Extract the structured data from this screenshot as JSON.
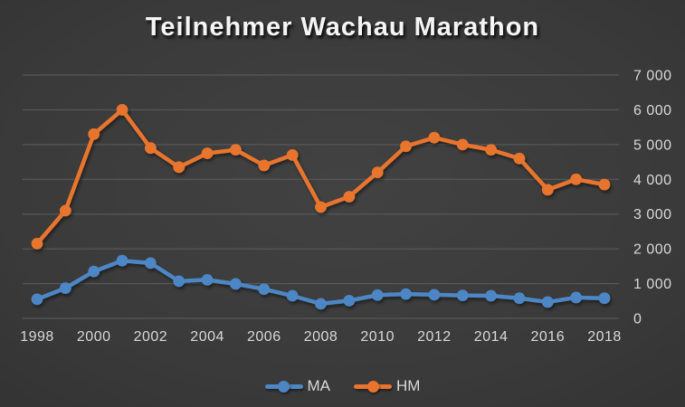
{
  "chart_data": {
    "type": "line",
    "title": "Teilnehmer Wachau Marathon",
    "x": [
      1998,
      1999,
      2000,
      2001,
      2002,
      2003,
      2004,
      2005,
      2006,
      2007,
      2008,
      2009,
      2010,
      2011,
      2012,
      2013,
      2014,
      2015,
      2016,
      2017,
      2018
    ],
    "x_tick_labels": [
      "1998",
      "2000",
      "2002",
      "2004",
      "2006",
      "2008",
      "2010",
      "2012",
      "2014",
      "2016",
      "2018"
    ],
    "series": [
      {
        "name": "MA",
        "color": "#4E86C4",
        "values": [
          550,
          870,
          1350,
          1660,
          1590,
          1070,
          1110,
          990,
          840,
          650,
          420,
          510,
          670,
          700,
          680,
          660,
          650,
          580,
          470,
          600,
          580
        ]
      },
      {
        "name": "HM",
        "color": "#E8742E",
        "values": [
          2150,
          3100,
          5300,
          6000,
          4900,
          4350,
          4750,
          4850,
          4400,
          4700,
          3200,
          3500,
          4200,
          4950,
          5200,
          5000,
          4850,
          4600,
          3700,
          4000,
          3850
        ]
      }
    ],
    "ylim": [
      0,
      7000
    ],
    "y_ticks": [
      0,
      1000,
      2000,
      3000,
      4000,
      5000,
      6000,
      7000
    ],
    "y_tick_labels": [
      "0",
      "1 000",
      "2 000",
      "3 000",
      "4 000",
      "5 000",
      "6 000",
      "7 000"
    ],
    "grid": "horizontal",
    "legend_position": "bottom",
    "colors": {
      "background_center": "#424242",
      "background_edge": "#1f1f1f",
      "gridline": "#5e5e5e",
      "axis_label": "#d9d9d9",
      "title": "#f5f5f5"
    }
  }
}
